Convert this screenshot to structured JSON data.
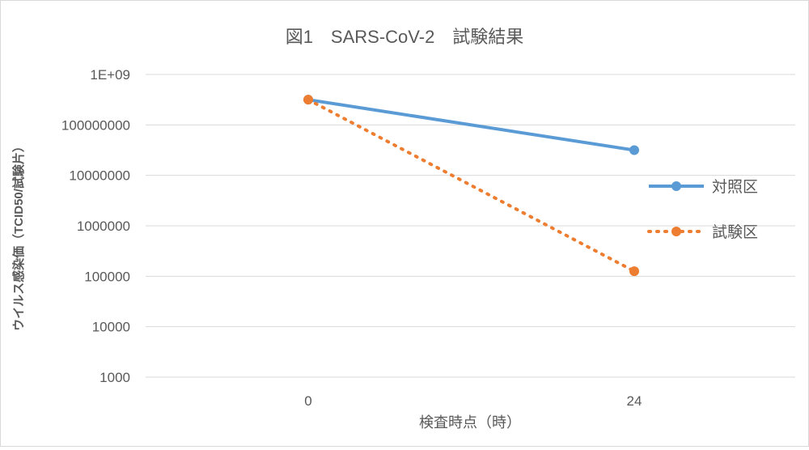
{
  "chart_data": {
    "type": "line",
    "title": "図1　SARS-CoV-2　試験結果",
    "xlabel": "検査時点（時）",
    "ylabel": "ウイルス感染価（TCID50/試験片）",
    "y_scale": "log10",
    "ylim": [
      1000,
      1000000000
    ],
    "yticks": [
      {
        "value": 1000,
        "label": "1000"
      },
      {
        "value": 10000,
        "label": "10000"
      },
      {
        "value": 100000,
        "label": "100000"
      },
      {
        "value": 1000000,
        "label": "1000000"
      },
      {
        "value": 10000000,
        "label": "10000000"
      },
      {
        "value": 100000000,
        "label": "100000000"
      },
      {
        "value": 1000000000,
        "label": "1E+09"
      }
    ],
    "categories": [
      "0",
      "24"
    ],
    "series": [
      {
        "name": "対照区",
        "values": [
          316000000,
          31600000
        ],
        "color": "#5b9bd5",
        "line_style": "solid",
        "marker": "circle"
      },
      {
        "name": "試験区",
        "values": [
          316000000,
          126000
        ],
        "color": "#ed7d31",
        "line_style": "dotted",
        "marker": "circle"
      }
    ],
    "grid": true,
    "legend_position": "right"
  }
}
